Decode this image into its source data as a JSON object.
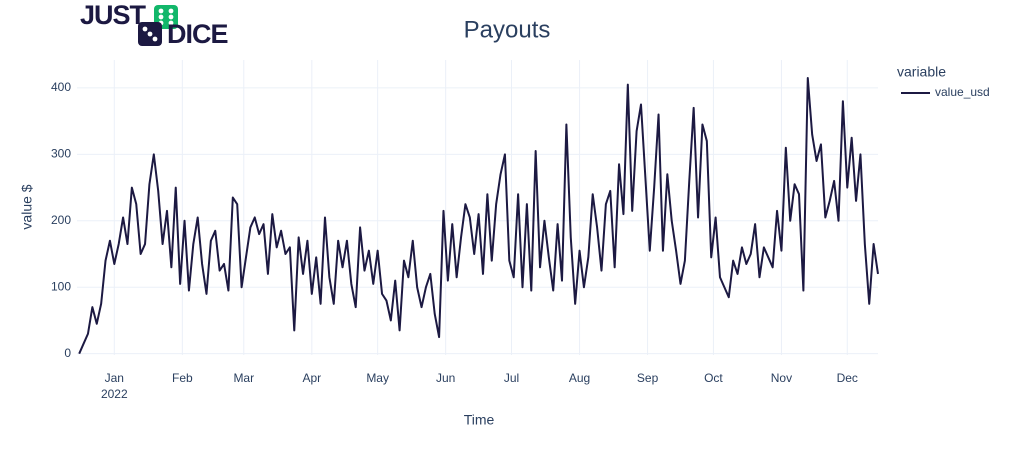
{
  "logo": {
    "top": "JUST",
    "bottom": "DICE"
  },
  "chart_data": {
    "type": "line",
    "title": "Payouts",
    "x_label": "Time",
    "y_label": "value $",
    "legend_title": "variable",
    "legend": "right",
    "x_year": "2022",
    "x": [
      -16,
      -14,
      -12,
      -10,
      -8,
      -6,
      -4,
      -2,
      0,
      2,
      4,
      6,
      8,
      10,
      12,
      14,
      16,
      18,
      20,
      22,
      24,
      26,
      28,
      30,
      32,
      34,
      36,
      38,
      40,
      42,
      44,
      46,
      48,
      50,
      52,
      54,
      56,
      58,
      60,
      62,
      64,
      66,
      68,
      70,
      72,
      74,
      76,
      78,
      80,
      82,
      84,
      86,
      88,
      90,
      92,
      94,
      96,
      98,
      100,
      102,
      104,
      106,
      108,
      110,
      112,
      114,
      116,
      118,
      120,
      122,
      124,
      126,
      128,
      130,
      132,
      134,
      136,
      138,
      140,
      142,
      144,
      146,
      148,
      150,
      152,
      154,
      156,
      158,
      160,
      162,
      164,
      166,
      168,
      170,
      172,
      174,
      176,
      178,
      180,
      182,
      184,
      186,
      188,
      190,
      192,
      194,
      196,
      198,
      200,
      202,
      204,
      206,
      208,
      210,
      212,
      214,
      216,
      218,
      220,
      222,
      224,
      226,
      228,
      230,
      232,
      234,
      236,
      238,
      240,
      242,
      244,
      246,
      248,
      250,
      252,
      254,
      256,
      258,
      260,
      262,
      264,
      266,
      268,
      270,
      272,
      274,
      276,
      278,
      280,
      282,
      284,
      286,
      288,
      290,
      292,
      294,
      296,
      298,
      300,
      302,
      304,
      306,
      308,
      310,
      312,
      314,
      316,
      318,
      320,
      322,
      324,
      326,
      328,
      330,
      332,
      334,
      336,
      338,
      340,
      342,
      344,
      346,
      348
    ],
    "series": [
      {
        "name": "value_usd",
        "color": "#1c1942",
        "values": [
          0,
          15,
          30,
          70,
          45,
          75,
          140,
          170,
          135,
          165,
          205,
          165,
          250,
          225,
          150,
          165,
          255,
          300,
          245,
          165,
          215,
          130,
          250,
          105,
          200,
          95,
          165,
          205,
          135,
          90,
          170,
          185,
          125,
          135,
          95,
          235,
          225,
          100,
          145,
          190,
          205,
          180,
          195,
          120,
          210,
          160,
          185,
          150,
          160,
          35,
          175,
          120,
          170,
          90,
          145,
          75,
          205,
          115,
          75,
          170,
          130,
          170,
          105,
          70,
          190,
          125,
          155,
          105,
          155,
          90,
          80,
          50,
          110,
          35,
          140,
          115,
          170,
          100,
          70,
          100,
          120,
          60,
          25,
          215,
          110,
          195,
          115,
          175,
          225,
          205,
          150,
          210,
          120,
          240,
          140,
          225,
          270,
          300,
          140,
          115,
          240,
          100,
          225,
          95,
          305,
          130,
          200,
          145,
          95,
          195,
          110,
          345,
          175,
          75,
          155,
          100,
          145,
          240,
          190,
          125,
          225,
          245,
          130,
          285,
          210,
          405,
          215,
          335,
          375,
          265,
          155,
          250,
          360,
          155,
          270,
          200,
          155,
          105,
          140,
          260,
          370,
          205,
          345,
          320,
          145,
          205,
          115,
          100,
          85,
          140,
          120,
          160,
          135,
          150,
          195,
          115,
          160,
          145,
          130,
          215,
          155,
          310,
          200,
          255,
          240,
          95,
          415,
          330,
          290,
          315,
          205,
          230,
          260,
          200,
          380,
          250,
          325,
          230,
          300,
          165,
          75,
          165,
          120
        ]
      }
    ],
    "xlim": [
      -17,
      348
    ],
    "xticks": [
      {
        "value": 0,
        "label": "Jan"
      },
      {
        "value": 31,
        "label": "Feb"
      },
      {
        "value": 59,
        "label": "Mar"
      },
      {
        "value": 90,
        "label": "Apr"
      },
      {
        "value": 120,
        "label": "May"
      },
      {
        "value": 151,
        "label": "Jun"
      },
      {
        "value": 181,
        "label": "Jul"
      },
      {
        "value": 212,
        "label": "Aug"
      },
      {
        "value": 243,
        "label": "Sep"
      },
      {
        "value": 273,
        "label": "Oct"
      },
      {
        "value": 304,
        "label": "Nov"
      },
      {
        "value": 334,
        "label": "Dec"
      }
    ],
    "ylim": [
      -2,
      442
    ],
    "yticks": [
      0,
      100,
      200,
      300,
      400
    ],
    "grid": true
  }
}
